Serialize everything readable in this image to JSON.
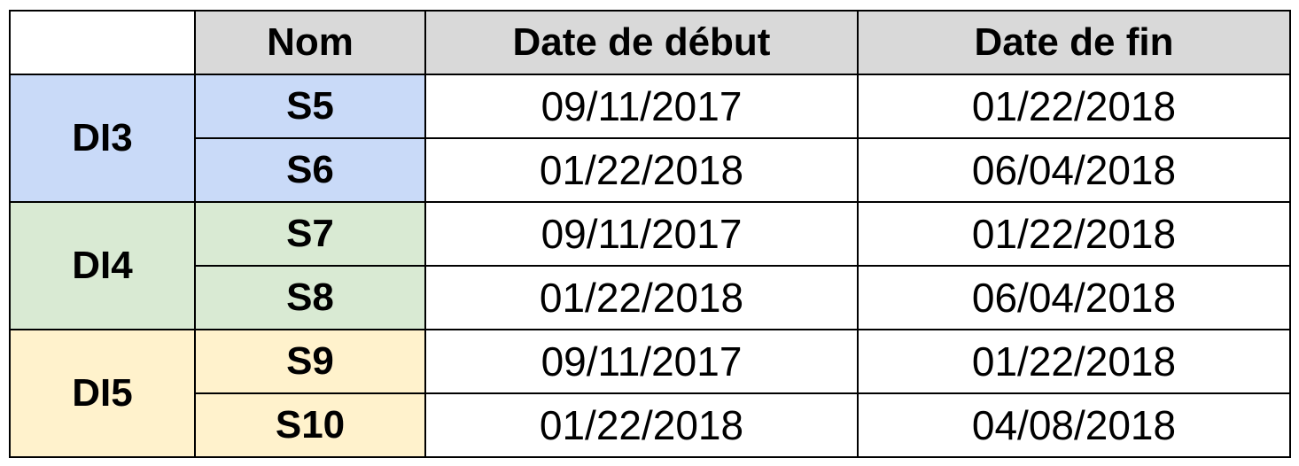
{
  "header": {
    "name": "Nom",
    "start": "Date de début",
    "end": "Date de fin"
  },
  "colors": {
    "header_bg": "#d9d9d9",
    "DI3": "#c9daf8",
    "DI4": "#d9ead3",
    "DI5": "#fff2cc"
  },
  "groups": [
    {
      "label": "DI3",
      "rows": [
        {
          "name": "S5",
          "start": "09/11/2017",
          "end": "01/22/2018"
        },
        {
          "name": "S6",
          "start": "01/22/2018",
          "end": "06/04/2018"
        }
      ]
    },
    {
      "label": "DI4",
      "rows": [
        {
          "name": "S7",
          "start": "09/11/2017",
          "end": "01/22/2018"
        },
        {
          "name": "S8",
          "start": "01/22/2018",
          "end": "06/04/2018"
        }
      ]
    },
    {
      "label": "DI5",
      "rows": [
        {
          "name": "S9",
          "start": "09/11/2017",
          "end": "01/22/2018"
        },
        {
          "name": "S10",
          "start": "01/22/2018",
          "end": "04/08/2018"
        }
      ]
    }
  ]
}
